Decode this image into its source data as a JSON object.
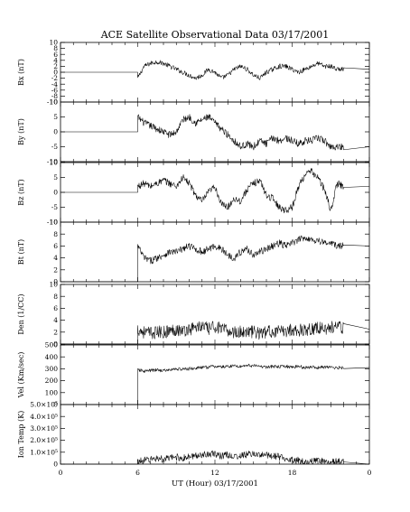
{
  "chart_data": {
    "type": "line",
    "title": "ACE Satellite Observational Data   03/17/2001",
    "xlabel": "UT (Hour)  03/17/2001",
    "x_ticks": [
      "0",
      "6",
      "12",
      "18",
      "0"
    ],
    "xlim": [
      0,
      24
    ],
    "grid": false,
    "data_start_hour": 6.0,
    "data_end_hour": 22.0,
    "panels": [
      {
        "ylabel": "Bx (nT)",
        "ylim": [
          -10,
          10
        ],
        "y_ticks": [
          10,
          8,
          6,
          4,
          2,
          0,
          -2,
          -4,
          -6,
          -8,
          -10
        ],
        "y_tick_labels": [
          "10",
          "8",
          "6",
          "4",
          "2",
          "0",
          "-2",
          "-4",
          "-6",
          "-8",
          "-10"
        ],
        "pre_value": 0,
        "post_value": 1,
        "x": [
          6.0,
          6.5,
          7.0,
          7.5,
          8.0,
          8.5,
          9.0,
          9.5,
          10.0,
          10.5,
          11.0,
          11.5,
          12.0,
          12.5,
          13.0,
          13.5,
          14.0,
          14.5,
          15.0,
          15.5,
          16.0,
          16.5,
          17.0,
          17.5,
          18.0,
          18.5,
          19.0,
          19.5,
          20.0,
          20.5,
          21.0,
          21.5,
          22.0
        ],
        "y": [
          -2,
          2,
          3,
          3.5,
          3,
          2,
          1,
          0,
          -1,
          -2,
          -1,
          1,
          0,
          -2,
          -1,
          1,
          2,
          1,
          -1,
          -2,
          0,
          1,
          2,
          2,
          1,
          0,
          1,
          2,
          3,
          2,
          2,
          1,
          1
        ],
        "noise": 0.8
      },
      {
        "ylabel": "By (nT)",
        "ylim": [
          -10,
          10
        ],
        "y_ticks": [
          10,
          5,
          0,
          -5,
          -10
        ],
        "y_tick_labels": [
          "10",
          "5",
          "0",
          "-5",
          "-10"
        ],
        "pre_value": 0,
        "post_value": -5,
        "x": [
          6.0,
          6.5,
          7.0,
          7.5,
          8.0,
          8.5,
          9.0,
          9.5,
          10.0,
          10.5,
          11.0,
          11.5,
          12.0,
          12.5,
          13.0,
          13.5,
          14.0,
          14.5,
          15.0,
          15.5,
          16.0,
          16.5,
          17.0,
          17.5,
          18.0,
          18.5,
          19.0,
          19.5,
          20.0,
          20.5,
          21.0,
          21.5,
          22.0
        ],
        "y": [
          5,
          3,
          2,
          1,
          0,
          -1,
          0,
          4,
          5,
          3,
          4,
          5,
          3,
          1,
          -1,
          -3,
          -5,
          -4,
          -5,
          -3,
          -4,
          -2,
          -3,
          -2,
          -3,
          -4,
          -3,
          -3,
          -2,
          -3,
          -5,
          -5,
          -5
        ],
        "noise": 1.2
      },
      {
        "ylabel": "Bz (nT)",
        "ylim": [
          -10,
          10
        ],
        "y_ticks": [
          10,
          5,
          0,
          -5,
          -10
        ],
        "y_tick_labels": [
          "10",
          "5",
          "0",
          "-5",
          "-10"
        ],
        "pre_value": 0,
        "post_value": 2,
        "x": [
          6.0,
          6.5,
          7.0,
          7.5,
          8.0,
          8.5,
          9.0,
          9.5,
          10.0,
          10.5,
          11.0,
          11.5,
          12.0,
          12.5,
          13.0,
          13.5,
          14.0,
          14.5,
          15.0,
          15.5,
          16.0,
          16.5,
          17.0,
          17.5,
          18.0,
          18.5,
          19.0,
          19.5,
          20.0,
          20.5,
          21.0,
          21.5,
          22.0
        ],
        "y": [
          2,
          3,
          2,
          3,
          4,
          3,
          2,
          5,
          3,
          -1,
          -3,
          0,
          2,
          -4,
          -5,
          -2,
          -3,
          1,
          3,
          4,
          -1,
          -2,
          -5,
          -6,
          -5,
          2,
          6,
          7,
          5,
          1,
          -6,
          3,
          2
        ],
        "noise": 1.2
      },
      {
        "ylabel": "Bt (nT)",
        "ylim": [
          0,
          10
        ],
        "y_ticks": [
          10,
          8,
          6,
          4,
          2,
          0
        ],
        "y_tick_labels": [
          "10",
          "8",
          "6",
          "4",
          "2",
          "0"
        ],
        "pre_value": 0,
        "post_value": 6,
        "x": [
          6.0,
          6.5,
          7.0,
          7.5,
          8.0,
          8.5,
          9.0,
          9.5,
          10.0,
          10.5,
          11.0,
          11.5,
          12.0,
          12.5,
          13.0,
          13.5,
          14.0,
          14.5,
          15.0,
          15.5,
          16.0,
          16.5,
          17.0,
          17.5,
          18.0,
          18.5,
          19.0,
          19.5,
          20.0,
          20.5,
          21.0,
          21.5,
          22.0
        ],
        "y": [
          6,
          4,
          3.5,
          4,
          4.5,
          5,
          5,
          5.5,
          6,
          5.5,
          5,
          5.5,
          6,
          5.5,
          4.5,
          4,
          5,
          5.5,
          4.5,
          5,
          5.5,
          6,
          6.5,
          6,
          6.5,
          7,
          7.5,
          7,
          7,
          6.5,
          6.5,
          6,
          6
        ],
        "noise": 0.6
      },
      {
        "ylabel": "Den (1/CC)",
        "ylim": [
          0,
          10
        ],
        "y_ticks": [
          10,
          8,
          6,
          4,
          2,
          0
        ],
        "y_tick_labels": [
          "10",
          "8",
          "6",
          "4",
          "2",
          "0"
        ],
        "pre_value": 0,
        "post_value": 2.5,
        "x": [
          6.0,
          6.5,
          7.0,
          7.5,
          8.0,
          8.5,
          9.0,
          9.5,
          10.0,
          10.5,
          11.0,
          11.5,
          12.0,
          12.5,
          13.0,
          13.5,
          14.0,
          14.5,
          15.0,
          15.5,
          16.0,
          16.5,
          17.0,
          17.5,
          18.0,
          18.5,
          19.0,
          19.5,
          20.0,
          20.5,
          21.0,
          21.5,
          22.0
        ],
        "y": [
          2.5,
          2,
          1.8,
          2,
          2,
          2.2,
          2.5,
          2.2,
          2.5,
          2.8,
          3,
          2.5,
          3,
          2.5,
          2.2,
          2,
          2,
          2.2,
          2,
          1.8,
          2,
          2.2,
          2,
          2.2,
          2.5,
          2.2,
          2.5,
          2.5,
          2.8,
          2.5,
          2.8,
          3,
          2.5
        ],
        "noise": 1.1
      },
      {
        "ylabel": "Vel (Km/sec)",
        "ylim": [
          0,
          500
        ],
        "y_ticks": [
          500,
          400,
          300,
          200,
          100,
          0
        ],
        "y_tick_labels": [
          "500",
          "400",
          "300",
          "200",
          "100",
          "0"
        ],
        "pre_value": 0,
        "post_value": 310,
        "x": [
          6.0,
          6.5,
          7.0,
          7.5,
          8.0,
          8.5,
          9.0,
          9.5,
          10.0,
          10.5,
          11.0,
          11.5,
          12.0,
          12.5,
          13.0,
          13.5,
          14.0,
          14.5,
          15.0,
          15.5,
          16.0,
          16.5,
          17.0,
          17.5,
          18.0,
          18.5,
          19.0,
          19.5,
          20.0,
          20.5,
          21.0,
          21.5,
          22.0
        ],
        "y": [
          290,
          280,
          285,
          290,
          285,
          290,
          300,
          295,
          300,
          305,
          310,
          315,
          320,
          315,
          320,
          325,
          320,
          330,
          325,
          320,
          315,
          320,
          315,
          320,
          315,
          320,
          310,
          315,
          310,
          315,
          310,
          310,
          310
        ],
        "noise": 14
      },
      {
        "ylabel": "Ion Temp (K)",
        "ylim": [
          0,
          500000
        ],
        "y_ticks": [
          500000,
          400000,
          300000,
          200000,
          100000,
          0
        ],
        "y_tick_labels": [
          "5.0×10⁵",
          "4.0×10⁵",
          "3.0×10⁵",
          "2.0×10⁵",
          "1.0×10⁵",
          "0"
        ],
        "pre_value": 0,
        "post_value": 0,
        "x": [
          6.0,
          6.5,
          7.0,
          7.5,
          8.0,
          8.5,
          9.0,
          9.5,
          10.0,
          10.5,
          11.0,
          11.5,
          12.0,
          12.5,
          13.0,
          13.5,
          14.0,
          14.5,
          15.0,
          15.5,
          16.0,
          16.5,
          17.0,
          17.5,
          18.0,
          18.5,
          19.0,
          19.5,
          20.0,
          20.5,
          21.0,
          21.5,
          22.0
        ],
        "y": [
          20000,
          30000,
          40000,
          50000,
          40000,
          50000,
          60000,
          50000,
          60000,
          70000,
          80000,
          90000,
          80000,
          70000,
          80000,
          60000,
          70000,
          80000,
          90000,
          70000,
          80000,
          70000,
          60000,
          50000,
          40000,
          30000,
          20000,
          20000,
          30000,
          20000,
          20000,
          20000,
          20000
        ],
        "noise": 30000
      }
    ]
  }
}
